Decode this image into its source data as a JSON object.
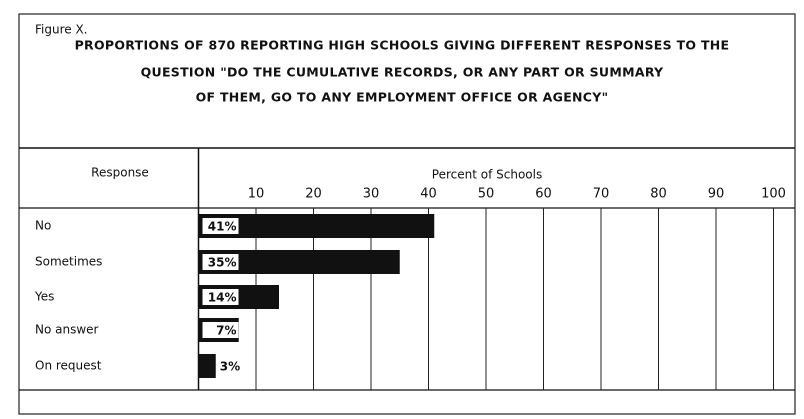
{
  "chart_data": {
    "type": "bar",
    "orientation": "horizontal",
    "figure_label": "Figure X.",
    "title": [
      "PROPORTIONS OF 870 REPORTING HIGH SCHOOLS GIVING DIFFERENT RESPONSES TO THE",
      "QUESTION \"DO THE CUMULATIVE RECORDS, OR ANY PART OR SUMMARY",
      "OF THEM, GO TO ANY EMPLOYMENT OFFICE OR AGENCY\""
    ],
    "column_header": "Response",
    "x_label": "Percent of Schools",
    "categories": [
      "No",
      "Sometimes",
      "Yes",
      "No answer",
      "On request"
    ],
    "values": [
      41,
      35,
      14,
      7,
      3
    ],
    "value_labels": [
      "41%",
      "35%",
      "14%",
      "7%",
      "3%"
    ],
    "color": "#111111",
    "xlim": [
      0,
      100
    ],
    "xticks": [
      10,
      20,
      30,
      40,
      50,
      60,
      70,
      80,
      90,
      100
    ],
    "grid": true
  }
}
